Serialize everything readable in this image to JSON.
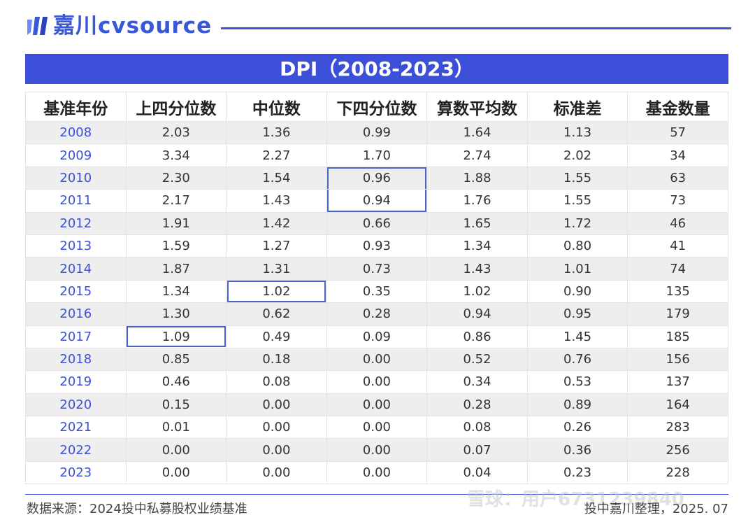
{
  "brand": {
    "name": "嘉川cvsource",
    "color": "#3a57d6"
  },
  "title": "DPI（2008-2023）",
  "headers": [
    "基准年份",
    "上四分位数",
    "中位数",
    "下四分位数",
    "算数平均数",
    "标准差",
    "基金数量"
  ],
  "rows": [
    [
      "2008",
      "2.03",
      "1.36",
      "0.99",
      "1.64",
      "1.13",
      "57"
    ],
    [
      "2009",
      "3.34",
      "2.27",
      "1.70",
      "2.74",
      "2.02",
      "34"
    ],
    [
      "2010",
      "2.30",
      "1.54",
      "0.96",
      "1.88",
      "1.55",
      "63"
    ],
    [
      "2011",
      "2.17",
      "1.43",
      "0.94",
      "1.76",
      "1.55",
      "73"
    ],
    [
      "2012",
      "1.91",
      "1.42",
      "0.66",
      "1.65",
      "1.72",
      "46"
    ],
    [
      "2013",
      "1.59",
      "1.27",
      "0.93",
      "1.34",
      "0.80",
      "41"
    ],
    [
      "2014",
      "1.87",
      "1.31",
      "0.73",
      "1.43",
      "1.01",
      "74"
    ],
    [
      "2015",
      "1.34",
      "1.02",
      "0.35",
      "1.02",
      "0.90",
      "135"
    ],
    [
      "2016",
      "1.30",
      "0.62",
      "0.28",
      "0.94",
      "0.95",
      "179"
    ],
    [
      "2017",
      "1.09",
      "0.49",
      "0.09",
      "0.86",
      "1.45",
      "185"
    ],
    [
      "2018",
      "0.85",
      "0.18",
      "0.00",
      "0.52",
      "0.76",
      "156"
    ],
    [
      "2019",
      "0.46",
      "0.08",
      "0.00",
      "0.34",
      "0.53",
      "137"
    ],
    [
      "2020",
      "0.15",
      "0.00",
      "0.00",
      "0.28",
      "0.89",
      "164"
    ],
    [
      "2021",
      "0.01",
      "0.00",
      "0.00",
      "0.08",
      "0.26",
      "283"
    ],
    [
      "2022",
      "0.00",
      "0.00",
      "0.00",
      "0.07",
      "0.36",
      "256"
    ],
    [
      "2023",
      "0.00",
      "0.00",
      "0.00",
      "0.04",
      "0.23",
      "228"
    ]
  ],
  "highlights": [
    {
      "row": 2,
      "col": 3,
      "edge": "top"
    },
    {
      "row": 3,
      "col": 3,
      "edge": "bottom"
    },
    {
      "row": 7,
      "col": 2,
      "edge": "full"
    },
    {
      "row": 9,
      "col": 1,
      "edge": "full"
    }
  ],
  "footer": {
    "source": "数据来源：2024投中私募股权业绩基准",
    "credit": "投中嘉川整理，2025. 07",
    "watermark": "雪球：用户6731239840"
  }
}
